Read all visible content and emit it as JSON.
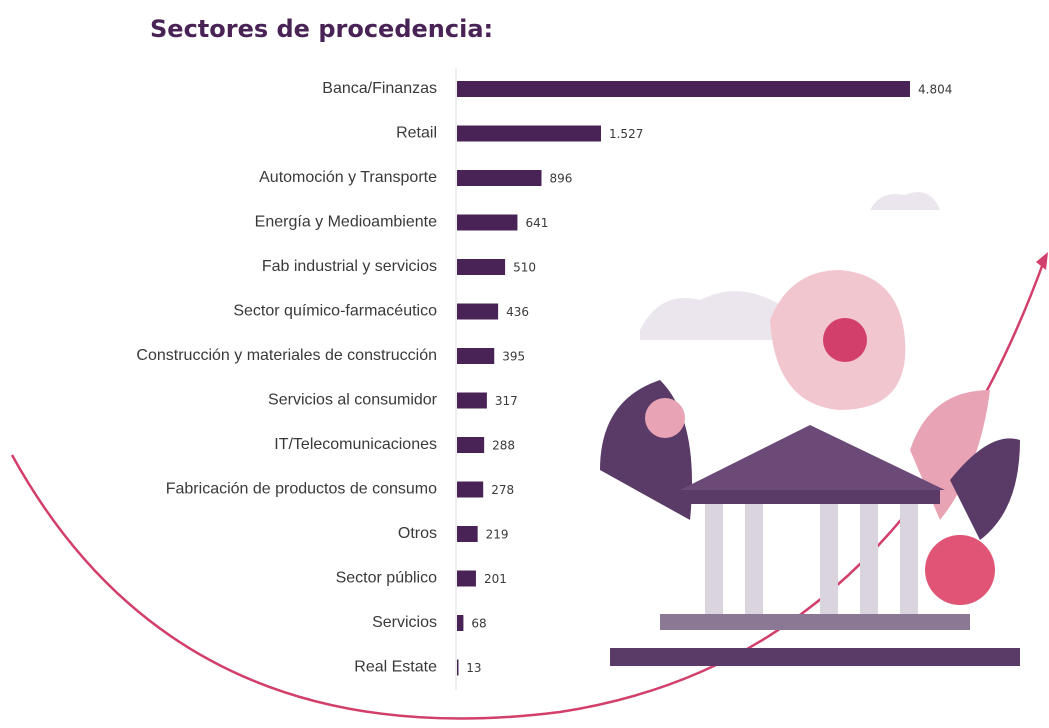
{
  "chart_data": {
    "type": "bar",
    "orientation": "horizontal",
    "title": "Sectores de procedencia:",
    "categories": [
      "Banca/Finanzas",
      "Retail",
      "Automoción y Transporte",
      "Energía y Medioambiente",
      "Fab industrial y servicios",
      "Sector químico-farmacéutico",
      "Construcción y materiales de construcción",
      "Servicios al consumidor",
      "IT/Telecomunicaciones",
      "Fabricación de productos de consumo",
      "Otros",
      "Sector público",
      "Servicios",
      "Real Estate"
    ],
    "values": [
      4804,
      1527,
      896,
      641,
      510,
      436,
      395,
      317,
      288,
      278,
      219,
      201,
      68,
      13
    ],
    "value_labels": [
      "4.804",
      "1.527",
      "896",
      "641",
      "510",
      "436",
      "395",
      "317",
      "288",
      "278",
      "219",
      "201",
      "68",
      "13"
    ],
    "color": "#4a2356"
  }
}
